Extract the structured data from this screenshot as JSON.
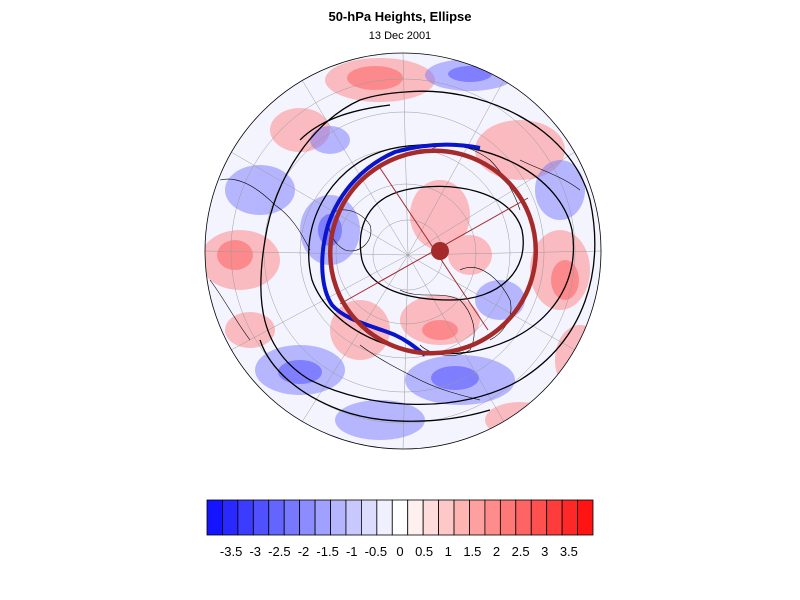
{
  "title": "50-hPa Heights, Ellipse",
  "date": "13 Dec 2001",
  "colorbar": {
    "colors": [
      "#1414ff",
      "#2828ff",
      "#3c3cff",
      "#5050ff",
      "#6464ff",
      "#7878ff",
      "#8c8cff",
      "#a0a0ff",
      "#b4b4ff",
      "#c8c8ff",
      "#dcdcff",
      "#f0f0ff",
      "#ffffff",
      "#fff0f0",
      "#ffdcdc",
      "#ffc8c8",
      "#ffb4b4",
      "#ffa0a0",
      "#ff8c8c",
      "#ff7878",
      "#ff6464",
      "#ff5050",
      "#ff3c3c",
      "#ff2828",
      "#ff1414"
    ],
    "labels": [
      "-3.5",
      "-3",
      "-2.5",
      "-2",
      "-1.5",
      "-1",
      "-0.5",
      "0",
      "0.5",
      "1",
      "1.5",
      "2",
      "2.5",
      "3",
      "3.5"
    ]
  },
  "legend_colors": {
    "ellipse": "#a52a2a",
    "contour_blue": "#0a14c8",
    "contour_black": "#000000"
  }
}
